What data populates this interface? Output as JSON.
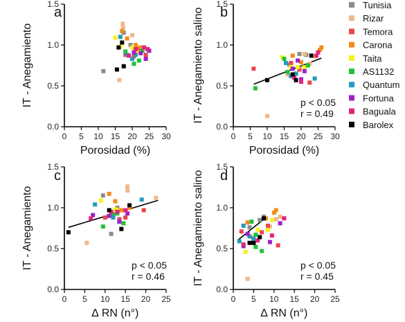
{
  "legend": [
    {
      "name": "Tunisia",
      "color": "#8c8c8c"
    },
    {
      "name": "Rizar",
      "color": "#f0b889"
    },
    {
      "name": "Temora",
      "color": "#e8464f"
    },
    {
      "name": "Carona",
      "color": "#f28b1c"
    },
    {
      "name": "Taita",
      "color": "#f5f21c"
    },
    {
      "name": "AS1132",
      "color": "#22c13a"
    },
    {
      "name": "Quantum",
      "color": "#2699bf"
    },
    {
      "name": "Fortuna",
      "color": "#a020c8"
    },
    {
      "name": "Baguala",
      "color": "#e0247d"
    },
    {
      "name": "Barolex",
      "color": "#000000"
    }
  ],
  "chart_data": [
    {
      "panel": "a",
      "type": "scatter",
      "xlabel": "Porosidad (%)",
      "ylabel": "IT - Anegamiento",
      "xlim": [
        0,
        30
      ],
      "ylim": [
        0,
        1.5
      ],
      "xticks": [
        0,
        5,
        10,
        15,
        20,
        25,
        30
      ],
      "yticks": [
        "0.0",
        "0.5",
        "1.0",
        "1.5"
      ],
      "stats": [],
      "regression": null,
      "points": [
        {
          "v": "Tunisia",
          "x": 11.5,
          "y": 0.68
        },
        {
          "v": "Tunisia",
          "x": 17.5,
          "y": 1.15
        },
        {
          "v": "Tunisia",
          "x": 19.5,
          "y": 1.0
        },
        {
          "v": "Rizar",
          "x": 16.2,
          "y": 0.57
        },
        {
          "v": "Rizar",
          "x": 17.2,
          "y": 1.26
        },
        {
          "v": "Rizar",
          "x": 17.3,
          "y": 1.21
        },
        {
          "v": "Rizar",
          "x": 20.0,
          "y": 1.12
        },
        {
          "v": "Rizar",
          "x": 21.5,
          "y": 0.97
        },
        {
          "v": "Temora",
          "x": 18.0,
          "y": 0.88
        },
        {
          "v": "Temora",
          "x": 20.5,
          "y": 0.86
        },
        {
          "v": "Temora",
          "x": 22.0,
          "y": 0.95
        },
        {
          "v": "Temora",
          "x": 24.0,
          "y": 0.88
        },
        {
          "v": "Carona",
          "x": 17.0,
          "y": 1.17
        },
        {
          "v": "Carona",
          "x": 18.5,
          "y": 1.08
        },
        {
          "v": "Carona",
          "x": 21.0,
          "y": 1.0
        },
        {
          "v": "Carona",
          "x": 22.5,
          "y": 0.97
        },
        {
          "v": "Taita",
          "x": 15.0,
          "y": 1.09
        },
        {
          "v": "Taita",
          "x": 16.5,
          "y": 0.98
        },
        {
          "v": "Taita",
          "x": 20.0,
          "y": 0.97
        },
        {
          "v": "Taita",
          "x": 21.5,
          "y": 0.91
        },
        {
          "v": "AS1132",
          "x": 18.0,
          "y": 0.92
        },
        {
          "v": "AS1132",
          "x": 20.5,
          "y": 0.77
        },
        {
          "v": "AS1132",
          "x": 22.0,
          "y": 0.81
        },
        {
          "v": "AS1132",
          "x": 23.0,
          "y": 0.93
        },
        {
          "v": "Quantum",
          "x": 16.5,
          "y": 1.1
        },
        {
          "v": "Quantum",
          "x": 18.5,
          "y": 0.88
        },
        {
          "v": "Quantum",
          "x": 20.0,
          "y": 0.83
        },
        {
          "v": "Quantum",
          "x": 21.0,
          "y": 0.88
        },
        {
          "v": "Fortuna",
          "x": 20.5,
          "y": 0.91
        },
        {
          "v": "Fortuna",
          "x": 22.5,
          "y": 0.9
        },
        {
          "v": "Fortuna",
          "x": 24.0,
          "y": 0.83
        },
        {
          "v": "Fortuna",
          "x": 25.0,
          "y": 0.93
        },
        {
          "v": "Baguala",
          "x": 19.0,
          "y": 0.87
        },
        {
          "v": "Baguala",
          "x": 21.0,
          "y": 0.95
        },
        {
          "v": "Baguala",
          "x": 23.5,
          "y": 0.97
        },
        {
          "v": "Baguala",
          "x": 24.5,
          "y": 0.95
        },
        {
          "v": "Barolex",
          "x": 15.5,
          "y": 0.7
        },
        {
          "v": "Barolex",
          "x": 16.0,
          "y": 0.97
        },
        {
          "v": "Barolex",
          "x": 17.0,
          "y": 1.03
        },
        {
          "v": "Barolex",
          "x": 17.5,
          "y": 0.74
        }
      ]
    },
    {
      "panel": "b",
      "type": "scatter",
      "xlabel": "Porosidad (%)",
      "ylabel": "IT - Anegamiento salino",
      "xlim": [
        0,
        30
      ],
      "ylim": [
        0,
        1.5
      ],
      "xticks": [
        0,
        5,
        10,
        15,
        20,
        25,
        30
      ],
      "yticks": [
        "0.0",
        "0.5",
        "1.0",
        "1.5"
      ],
      "stats": [
        "p < 0.05",
        "r = 0.49"
      ],
      "regression": {
        "x1": 6,
        "y1": 0.52,
        "x2": 26,
        "y2": 0.84
      },
      "points": [
        {
          "v": "Tunisia",
          "x": 19.5,
          "y": 0.89
        },
        {
          "v": "Tunisia",
          "x": 16.5,
          "y": 0.76
        },
        {
          "v": "Tunisia",
          "x": 21.5,
          "y": 0.88
        },
        {
          "v": "Rizar",
          "x": 10.0,
          "y": 0.13
        },
        {
          "v": "Rizar",
          "x": 16.0,
          "y": 0.64
        },
        {
          "v": "Rizar",
          "x": 21.0,
          "y": 0.89
        },
        {
          "v": "Rizar",
          "x": 22.5,
          "y": 0.77
        },
        {
          "v": "Rizar",
          "x": 24.0,
          "y": 0.86
        },
        {
          "v": "Temora",
          "x": 6.0,
          "y": 0.71
        },
        {
          "v": "Temora",
          "x": 17.0,
          "y": 0.78
        },
        {
          "v": "Temora",
          "x": 19.5,
          "y": 0.7
        },
        {
          "v": "Temora",
          "x": 22.5,
          "y": 0.54
        },
        {
          "v": "Carona",
          "x": 17.5,
          "y": 0.87
        },
        {
          "v": "Carona",
          "x": 20.0,
          "y": 0.79
        },
        {
          "v": "Carona",
          "x": 25.5,
          "y": 0.94
        },
        {
          "v": "Carona",
          "x": 26.0,
          "y": 0.97
        },
        {
          "v": "Taita",
          "x": 14.5,
          "y": 0.85
        },
        {
          "v": "Taita",
          "x": 17.0,
          "y": 0.73
        },
        {
          "v": "Taita",
          "x": 19.0,
          "y": 0.73
        },
        {
          "v": "Taita",
          "x": 21.0,
          "y": 0.73
        },
        {
          "v": "AS1132",
          "x": 6.5,
          "y": 0.47
        },
        {
          "v": "AS1132",
          "x": 15.0,
          "y": 0.83
        },
        {
          "v": "AS1132",
          "x": 16.0,
          "y": 0.67
        },
        {
          "v": "AS1132",
          "x": 22.0,
          "y": 0.75
        },
        {
          "v": "Quantum",
          "x": 15.5,
          "y": 0.78
        },
        {
          "v": "Quantum",
          "x": 17.0,
          "y": 0.62
        },
        {
          "v": "Quantum",
          "x": 18.5,
          "y": 0.65
        },
        {
          "v": "Quantum",
          "x": 24.0,
          "y": 0.59
        },
        {
          "v": "Fortuna",
          "x": 17.5,
          "y": 0.71
        },
        {
          "v": "Fortuna",
          "x": 19.0,
          "y": 0.81
        },
        {
          "v": "Fortuna",
          "x": 20.0,
          "y": 0.58
        },
        {
          "v": "Fortuna",
          "x": 21.0,
          "y": 0.68
        },
        {
          "v": "Baguala",
          "x": 18.0,
          "y": 0.6
        },
        {
          "v": "Baguala",
          "x": 20.0,
          "y": 0.55
        },
        {
          "v": "Baguala",
          "x": 24.5,
          "y": 0.87
        },
        {
          "v": "Baguala",
          "x": 25.0,
          "y": 0.91
        },
        {
          "v": "Barolex",
          "x": 10.0,
          "y": 0.57
        },
        {
          "v": "Barolex",
          "x": 17.5,
          "y": 0.64
        },
        {
          "v": "Barolex",
          "x": 18.5,
          "y": 0.57
        },
        {
          "v": "Barolex",
          "x": 23.0,
          "y": 0.87
        }
      ]
    },
    {
      "panel": "c",
      "type": "scatter",
      "xlabel": "∆ RN (n°)",
      "ylabel": "IT - Anegamiento",
      "xlim": [
        0,
        25
      ],
      "ylim": [
        0,
        1.5
      ],
      "xticks": [
        0,
        5,
        10,
        15,
        20,
        25
      ],
      "yticks": [
        "0.0",
        "0.5",
        "1.0",
        "1.5"
      ],
      "stats": [
        "p < 0.05",
        "r = 0.46"
      ],
      "regression": {
        "x1": 1,
        "y1": 0.76,
        "x2": 23,
        "y2": 1.09
      },
      "points": [
        {
          "v": "Tunisia",
          "x": 11.5,
          "y": 0.68
        },
        {
          "v": "Tunisia",
          "x": 9.5,
          "y": 1.15
        },
        {
          "v": "Tunisia",
          "x": 13.0,
          "y": 1.0
        },
        {
          "v": "Rizar",
          "x": 5.5,
          "y": 0.57
        },
        {
          "v": "Rizar",
          "x": 15.5,
          "y": 1.26
        },
        {
          "v": "Rizar",
          "x": 15.5,
          "y": 1.21
        },
        {
          "v": "Rizar",
          "x": 22.5,
          "y": 1.12
        },
        {
          "v": "Rizar",
          "x": 14.0,
          "y": 0.97
        },
        {
          "v": "Temora",
          "x": 10.0,
          "y": 0.88
        },
        {
          "v": "Temora",
          "x": 13.5,
          "y": 0.86
        },
        {
          "v": "Temora",
          "x": 19.5,
          "y": 0.97
        },
        {
          "v": "Temora",
          "x": 15.0,
          "y": 0.88
        },
        {
          "v": "Carona",
          "x": 11.0,
          "y": 1.17
        },
        {
          "v": "Carona",
          "x": 12.5,
          "y": 1.08
        },
        {
          "v": "Carona",
          "x": 16.0,
          "y": 1.0
        },
        {
          "v": "Carona",
          "x": 14.0,
          "y": 0.97
        },
        {
          "v": "Taita",
          "x": 9.0,
          "y": 1.09
        },
        {
          "v": "Taita",
          "x": 12.5,
          "y": 0.98
        },
        {
          "v": "Taita",
          "x": 13.0,
          "y": 0.97
        },
        {
          "v": "Taita",
          "x": 11.5,
          "y": 0.91
        },
        {
          "v": "AS1132",
          "x": 9.5,
          "y": 0.77
        },
        {
          "v": "AS1132",
          "x": 12.0,
          "y": 0.92
        },
        {
          "v": "AS1132",
          "x": 14.5,
          "y": 0.81
        },
        {
          "v": "AS1132",
          "x": 13.0,
          "y": 0.93
        },
        {
          "v": "Quantum",
          "x": 7.5,
          "y": 1.04
        },
        {
          "v": "Quantum",
          "x": 19.0,
          "y": 1.1
        },
        {
          "v": "Quantum",
          "x": 12.0,
          "y": 0.88
        },
        {
          "v": "Quantum",
          "x": 13.5,
          "y": 0.83
        },
        {
          "v": "Fortuna",
          "x": 7.0,
          "y": 0.91
        },
        {
          "v": "Fortuna",
          "x": 11.0,
          "y": 0.9
        },
        {
          "v": "Fortuna",
          "x": 13.5,
          "y": 0.83
        },
        {
          "v": "Fortuna",
          "x": 15.5,
          "y": 0.93
        },
        {
          "v": "Baguala",
          "x": 6.5,
          "y": 0.87
        },
        {
          "v": "Baguala",
          "x": 11.5,
          "y": 0.95
        },
        {
          "v": "Baguala",
          "x": 15.0,
          "y": 0.97
        },
        {
          "v": "Baguala",
          "x": 13.0,
          "y": 0.95
        },
        {
          "v": "Barolex",
          "x": 1.0,
          "y": 0.7
        },
        {
          "v": "Barolex",
          "x": 11.0,
          "y": 0.97
        },
        {
          "v": "Barolex",
          "x": 16.0,
          "y": 1.03
        },
        {
          "v": "Barolex",
          "x": 14.0,
          "y": 0.74
        }
      ]
    },
    {
      "panel": "d",
      "type": "scatter",
      "xlabel": "∆ RN (n°)",
      "ylabel": "IT - Anegamiento salino",
      "xlim": [
        0,
        25
      ],
      "ylim": [
        0,
        1.5
      ],
      "xticks": [
        0,
        5,
        10,
        15,
        20,
        25
      ],
      "yticks": [
        "0.0",
        "0.5",
        "1.0",
        "1.5"
      ],
      "stats": [
        "p < 0.05",
        "r = 0.45"
      ],
      "regression": {
        "x1": 1,
        "y1": 0.6,
        "x2": 8,
        "y2": 0.88
      },
      "points": [
        {
          "v": "Tunisia",
          "x": 6.5,
          "y": 0.85
        },
        {
          "v": "Tunisia",
          "x": 7.5,
          "y": 0.89
        },
        {
          "v": "Tunisia",
          "x": 4.0,
          "y": 0.76
        },
        {
          "v": "Rizar",
          "x": 3.5,
          "y": 0.13
        },
        {
          "v": "Rizar",
          "x": 4.5,
          "y": 0.64
        },
        {
          "v": "Rizar",
          "x": 9.0,
          "y": 0.77
        },
        {
          "v": "Rizar",
          "x": 11.5,
          "y": 0.89
        },
        {
          "v": "Rizar",
          "x": 10.5,
          "y": 0.86
        },
        {
          "v": "Temora",
          "x": 2.0,
          "y": 0.71
        },
        {
          "v": "Temora",
          "x": 7.0,
          "y": 0.7
        },
        {
          "v": "Temora",
          "x": 8.5,
          "y": 0.78
        },
        {
          "v": "Temora",
          "x": 11.0,
          "y": 0.54
        },
        {
          "v": "Carona",
          "x": 3.5,
          "y": 0.82
        },
        {
          "v": "Carona",
          "x": 8.0,
          "y": 0.87
        },
        {
          "v": "Carona",
          "x": 10.5,
          "y": 0.97
        },
        {
          "v": "Carona",
          "x": 10.0,
          "y": 0.94
        },
        {
          "v": "Taita",
          "x": 3.0,
          "y": 0.46
        },
        {
          "v": "Taita",
          "x": 6.0,
          "y": 0.73
        },
        {
          "v": "Taita",
          "x": 8.5,
          "y": 0.73
        },
        {
          "v": "Taita",
          "x": 9.5,
          "y": 0.85
        },
        {
          "v": "AS1132",
          "x": 4.5,
          "y": 0.83
        },
        {
          "v": "AS1132",
          "x": 5.5,
          "y": 0.52
        },
        {
          "v": "AS1132",
          "x": 5.5,
          "y": 0.67
        },
        {
          "v": "AS1132",
          "x": 7.0,
          "y": 0.47
        },
        {
          "v": "Quantum",
          "x": 1.5,
          "y": 0.59
        },
        {
          "v": "Quantum",
          "x": 2.5,
          "y": 0.78
        },
        {
          "v": "Quantum",
          "x": 4.0,
          "y": 0.65
        },
        {
          "v": "Quantum",
          "x": 5.0,
          "y": 0.62
        },
        {
          "v": "Fortuna",
          "x": 2.5,
          "y": 0.53
        },
        {
          "v": "Fortuna",
          "x": 3.5,
          "y": 0.68
        },
        {
          "v": "Fortuna",
          "x": 9.0,
          "y": 0.58
        },
        {
          "v": "Fortuna",
          "x": 11.5,
          "y": 0.81
        },
        {
          "v": "Baguala",
          "x": 2.5,
          "y": 0.55
        },
        {
          "v": "Baguala",
          "x": 6.0,
          "y": 0.6
        },
        {
          "v": "Baguala",
          "x": 9.5,
          "y": 0.66
        },
        {
          "v": "Baguala",
          "x": 12.5,
          "y": 0.87
        },
        {
          "v": "Barolex",
          "x": 4.0,
          "y": 0.57
        },
        {
          "v": "Barolex",
          "x": 5.0,
          "y": 0.57
        },
        {
          "v": "Barolex",
          "x": 6.5,
          "y": 0.64
        },
        {
          "v": "Barolex",
          "x": 7.5,
          "y": 0.87
        }
      ]
    }
  ]
}
